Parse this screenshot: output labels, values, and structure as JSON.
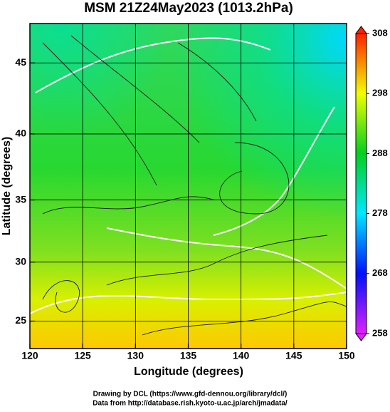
{
  "chart_data": {
    "type": "map",
    "title": "MSM 21Z24May2023 (1013.2hPa)",
    "x_label": "Longitude (degrees)",
    "y_label": "Latitude  (degrees)",
    "xlim": [
      120,
      150
    ],
    "xticks": [
      120,
      125,
      130,
      135,
      140,
      145,
      150
    ],
    "ylim": [
      22.6,
      47.6
    ],
    "yticks": [
      25,
      30,
      35,
      40,
      45
    ],
    "yscale": "mercator",
    "grid": true,
    "colorbar": {
      "lim": [
        258,
        308
      ],
      "ticks": [
        258,
        268,
        278,
        288,
        298,
        308
      ],
      "colors": [
        "#e020ff",
        "#0010ff",
        "#00e8ff",
        "#00d020",
        "#f0ff00",
        "#ff2000"
      ]
    },
    "credits": [
      "Drawing by DCL (https://www.gfd-dennou.org/library/dcl/)",
      "Data from http://database.rish.kyoto-u.ac.jp/arch/jmadata/"
    ]
  }
}
